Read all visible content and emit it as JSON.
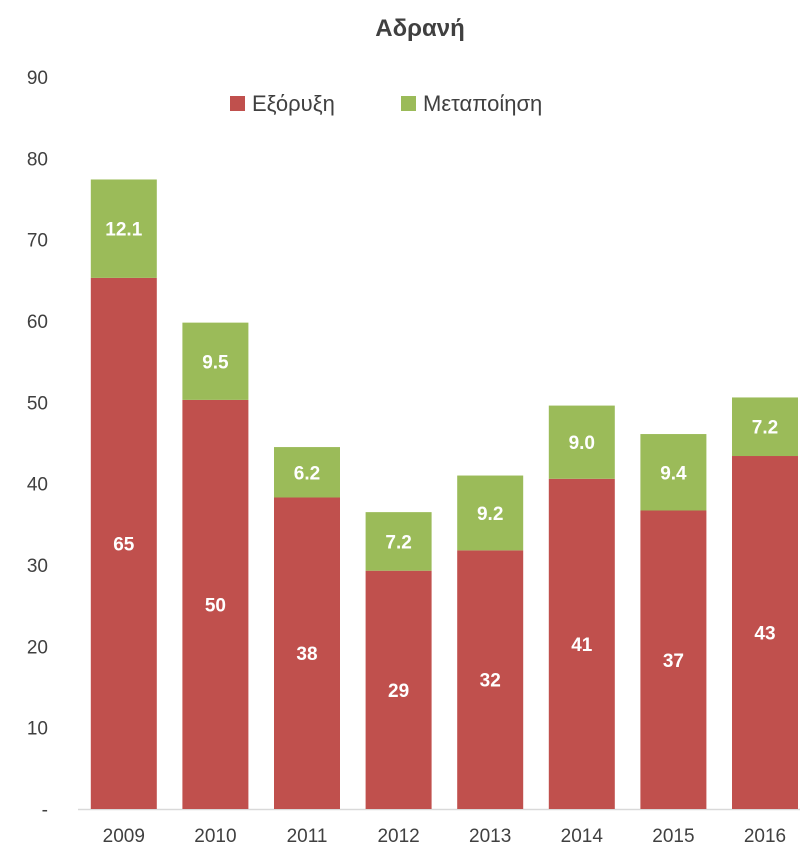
{
  "chart_data": {
    "type": "bar",
    "stacked": true,
    "title": "Αδρανή",
    "xlabel": "",
    "ylabel": "",
    "categories": [
      "2009",
      "2010",
      "2011",
      "2012",
      "2013",
      "2014",
      "2015",
      "2016"
    ],
    "series": [
      {
        "name": "Εξόρυξη",
        "color": "#C0504D",
        "values": [
          65.3,
          50.3,
          38.3,
          29.3,
          31.8,
          40.6,
          36.7,
          43.4
        ],
        "labels": [
          "65",
          "50",
          "38",
          "29",
          "32",
          "41",
          "37",
          "43"
        ]
      },
      {
        "name": "Μεταποίηση",
        "color": "#9BBB59",
        "values": [
          12.1,
          9.5,
          6.2,
          7.2,
          9.2,
          9.0,
          9.4,
          7.2
        ],
        "labels": [
          "12.1",
          "9.5",
          "6.2",
          "7.2",
          "9.2",
          "9.0",
          "9.4",
          "7.2"
        ]
      }
    ],
    "ylim": [
      0,
      90
    ],
    "yticks": [
      0,
      10,
      20,
      30,
      40,
      50,
      60,
      70,
      80,
      90
    ],
    "ytick_labels": [
      "-",
      "10",
      "20",
      "30",
      "40",
      "50",
      "60",
      "70",
      "80",
      "90"
    ],
    "grid": false,
    "legend_position": "top-center"
  }
}
